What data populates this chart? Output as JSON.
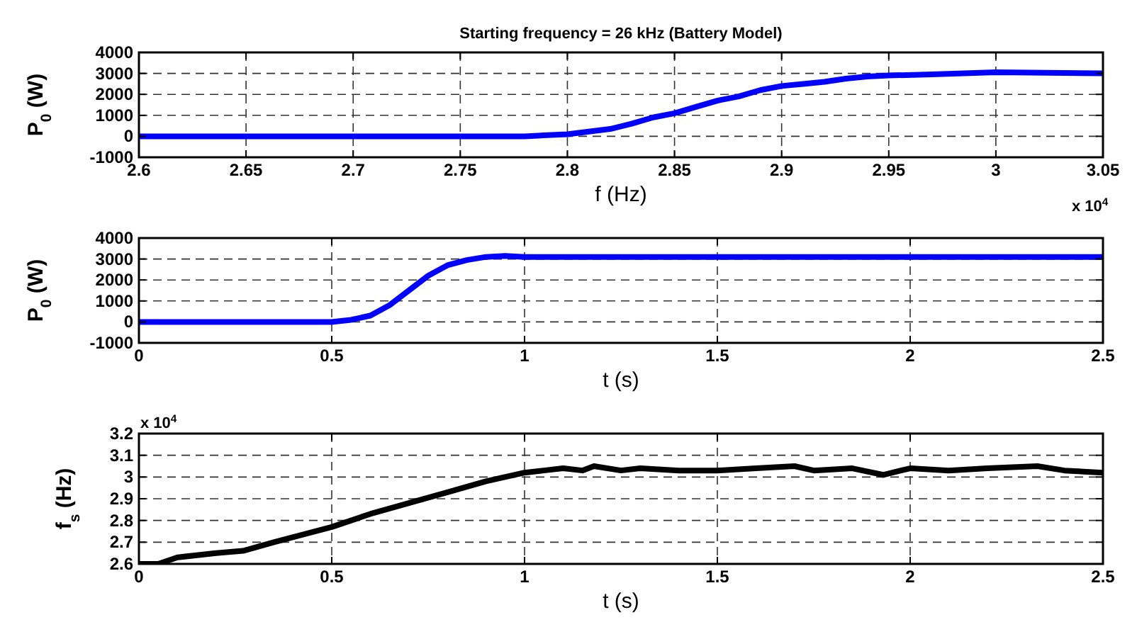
{
  "chart_data": [
    {
      "type": "line",
      "title": "Starting frequency = 26 kHz (Battery Model)",
      "xlabel": "f (Hz)",
      "ylabel": "P$_{0}$ (W)",
      "annotations": [
        "x 10$^{4}$"
      ],
      "xlim": [
        2.6,
        3.05
      ],
      "xticks": [
        2.6,
        2.65,
        2.7,
        2.75,
        2.8,
        2.85,
        2.9,
        2.95,
        3,
        3.05
      ],
      "ylim": [
        -1000,
        4000
      ],
      "yticks": [
        -1000,
        0,
        1000,
        2000,
        3000,
        4000
      ],
      "grid": true,
      "series": [
        {
          "color": "#0000ff",
          "x": [
            2.6,
            2.78,
            2.8,
            2.82,
            2.83,
            2.84,
            2.85,
            2.86,
            2.87,
            2.88,
            2.89,
            2.9,
            2.91,
            2.92,
            2.93,
            2.94,
            2.95,
            2.97,
            3.0,
            3.05
          ],
          "values": [
            0,
            0,
            100,
            350,
            600,
            900,
            1100,
            1400,
            1700,
            1900,
            2200,
            2400,
            2500,
            2600,
            2750,
            2850,
            2900,
            2950,
            3050,
            3000
          ]
        }
      ]
    },
    {
      "type": "line",
      "xlabel": "t (s)",
      "ylabel": "P$_{0}$ (W)",
      "xlim": [
        0,
        2.5
      ],
      "xticks": [
        0,
        0.5,
        1,
        1.5,
        2,
        2.5
      ],
      "ylim": [
        -1000,
        4000
      ],
      "yticks": [
        -1000,
        0,
        1000,
        2000,
        3000,
        4000
      ],
      "grid": true,
      "series": [
        {
          "color": "#0000ff",
          "x": [
            0,
            0.5,
            0.55,
            0.6,
            0.65,
            0.7,
            0.75,
            0.8,
            0.85,
            0.9,
            0.95,
            1.0,
            2.5
          ],
          "values": [
            0,
            0,
            100,
            300,
            800,
            1500,
            2200,
            2700,
            2950,
            3100,
            3150,
            3100,
            3100
          ]
        }
      ]
    },
    {
      "type": "line",
      "xlabel": "t (s)",
      "ylabel": "f$_{s}$ (Hz)",
      "annotations": [
        "x 10$^{4}$"
      ],
      "xlim": [
        0,
        2.5
      ],
      "xticks": [
        0,
        0.5,
        1,
        1.5,
        2,
        2.5
      ],
      "ylim": [
        2.6,
        3.2
      ],
      "yticks": [
        2.6,
        2.7,
        2.8,
        2.9,
        3,
        3.1,
        3.2
      ],
      "grid": true,
      "series": [
        {
          "color": "#000000",
          "x": [
            0,
            0.05,
            0.1,
            0.2,
            0.27,
            0.35,
            0.5,
            0.6,
            0.7,
            0.8,
            0.9,
            1.0,
            1.05,
            1.1,
            1.15,
            1.18,
            1.25,
            1.3,
            1.4,
            1.5,
            1.6,
            1.7,
            1.75,
            1.85,
            1.93,
            2.0,
            2.1,
            2.2,
            2.33,
            2.4,
            2.5
          ],
          "values": [
            2.6,
            2.6,
            2.63,
            2.65,
            2.66,
            2.7,
            2.77,
            2.83,
            2.88,
            2.93,
            2.98,
            3.02,
            3.03,
            3.04,
            3.03,
            3.05,
            3.03,
            3.04,
            3.03,
            3.03,
            3.04,
            3.05,
            3.03,
            3.04,
            3.01,
            3.04,
            3.03,
            3.04,
            3.05,
            3.03,
            3.02
          ]
        }
      ]
    }
  ]
}
